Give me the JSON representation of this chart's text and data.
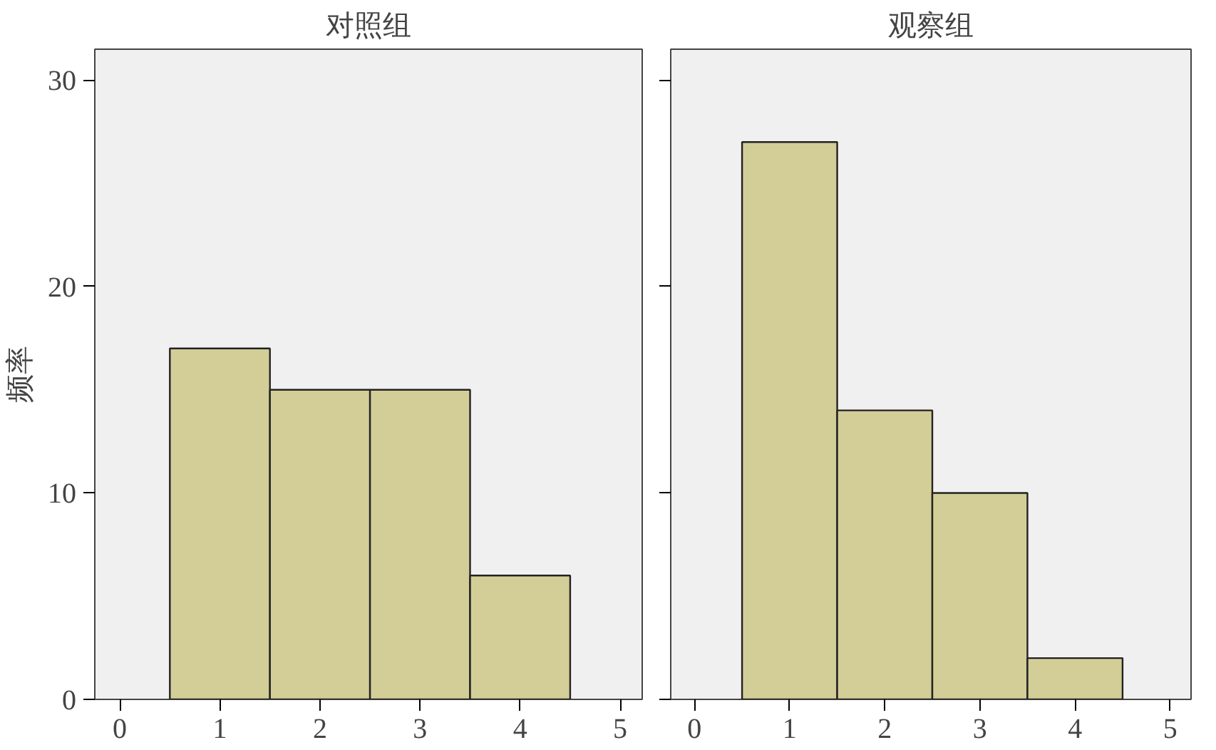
{
  "chart_data": [
    {
      "type": "histogram",
      "title": "对照组",
      "ylabel": "频率",
      "bins": [
        0.5,
        1.5,
        2.5,
        3.5,
        4.5
      ],
      "values": [
        17,
        15,
        15,
        6
      ],
      "color": "#d3ce97",
      "xlim": [
        -0.25,
        5.22
      ],
      "xticks": [
        0,
        1,
        2,
        3,
        4,
        5
      ],
      "ylim": [
        0,
        31.5
      ],
      "yticks": [
        0,
        10,
        20,
        30
      ],
      "grid": false
    },
    {
      "type": "histogram",
      "title": "观察组",
      "bins": [
        0.5,
        1.5,
        2.5,
        3.5,
        4.5
      ],
      "values": [
        27,
        14,
        10,
        2
      ],
      "color": "#d3ce97",
      "xlim": [
        -0.25,
        5.22
      ],
      "xticks": [
        0,
        1,
        2,
        3,
        4,
        5
      ],
      "ylim": [
        0,
        31.5
      ],
      "yticks": [
        0,
        10,
        20,
        30
      ],
      "grid": false,
      "tick_labels": "x"
    }
  ]
}
